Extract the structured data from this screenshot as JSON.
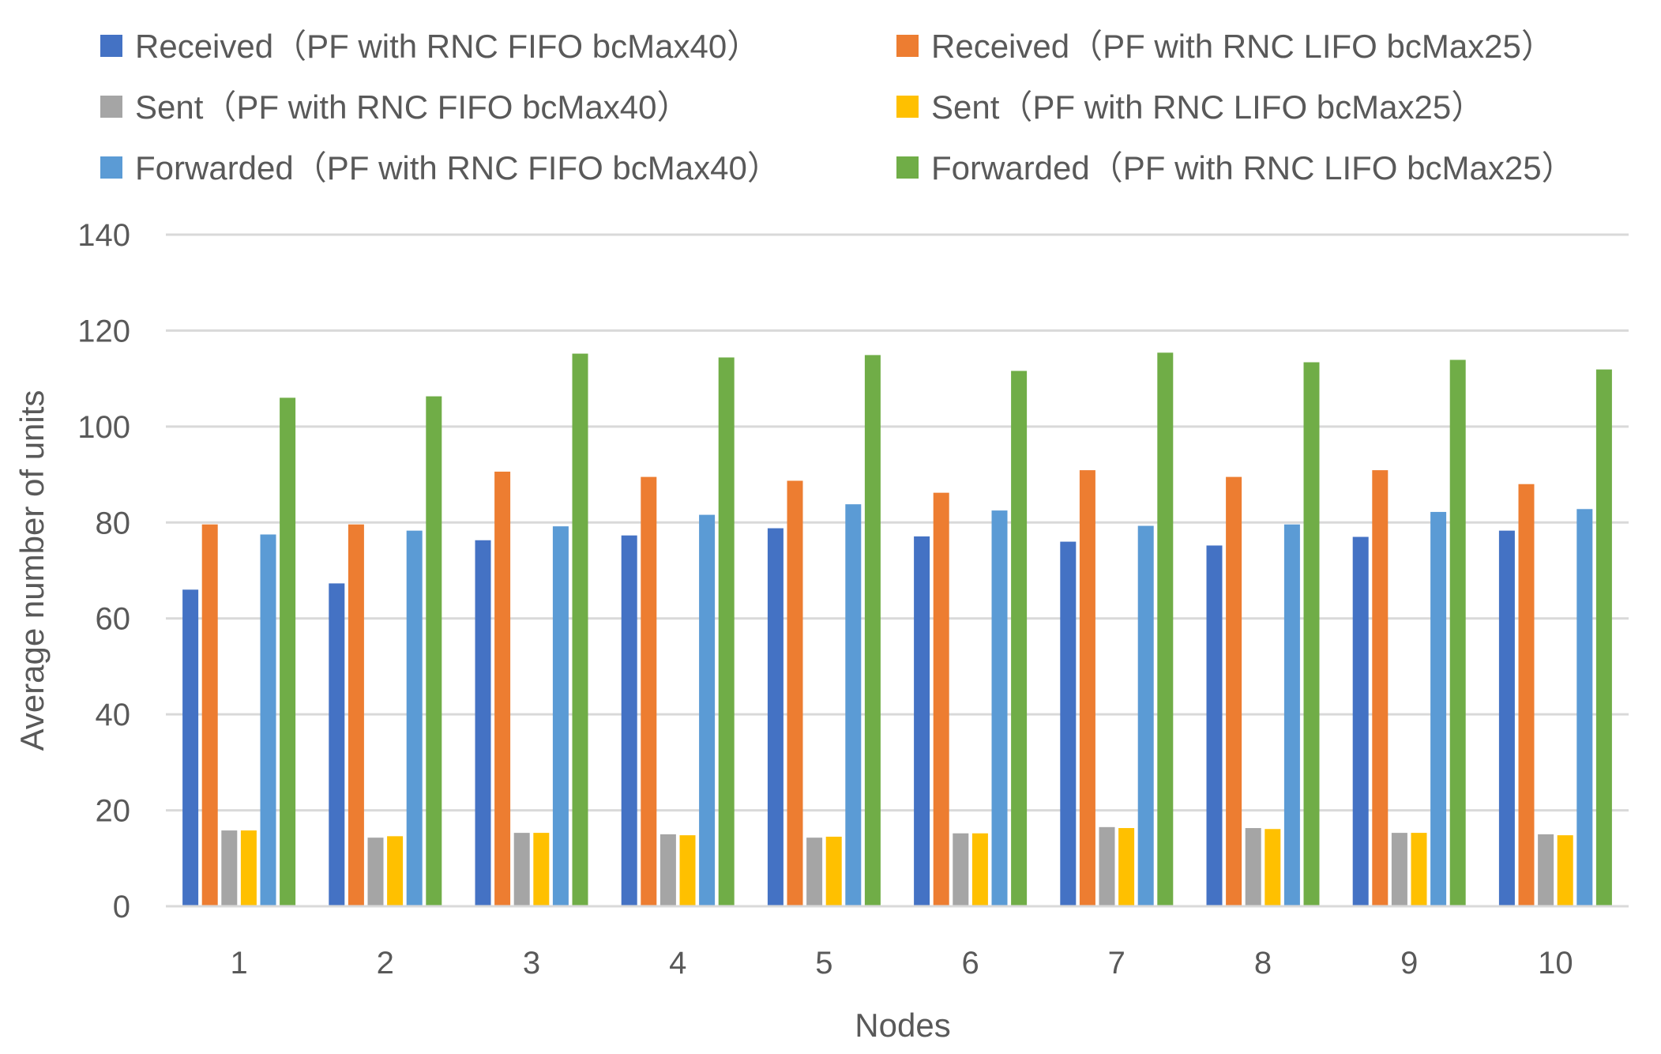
{
  "chart_data": {
    "type": "bar",
    "title": "",
    "xlabel": "Nodes",
    "ylabel": "Average number of units",
    "ylim": [
      0,
      140
    ],
    "yticks": [
      0,
      20,
      40,
      60,
      80,
      100,
      120,
      140
    ],
    "grid": true,
    "legend_position": "top",
    "categories": [
      "1",
      "2",
      "3",
      "4",
      "5",
      "6",
      "7",
      "8",
      "9",
      "10"
    ],
    "series": [
      {
        "name": "Received（PF with RNC FIFO bcMax40）",
        "color": "#4472C4",
        "values": [
          66,
          67.3,
          76.3,
          77.3,
          78.8,
          77.1,
          76,
          75.2,
          77,
          78.3
        ]
      },
      {
        "name": "Received（PF with RNC LIFO bcMax25）",
        "color": "#ED7D31",
        "values": [
          79.6,
          79.6,
          90.6,
          89.5,
          88.7,
          86.2,
          90.9,
          89.5,
          90.9,
          88
        ]
      },
      {
        "name": "Sent（PF with RNC FIFO bcMax40）",
        "color": "#A5A5A5",
        "values": [
          15.8,
          14.3,
          15.3,
          15,
          14.3,
          15.2,
          16.5,
          16.3,
          15.3,
          15
        ]
      },
      {
        "name": "Sent（PF with RNC LIFO bcMax25）",
        "color": "#FFC000",
        "values": [
          15.8,
          14.6,
          15.3,
          14.8,
          14.5,
          15.2,
          16.3,
          16.1,
          15.3,
          14.8
        ]
      },
      {
        "name": "Forwarded（PF with RNC FIFO bcMax40）",
        "color": "#5B9BD5",
        "values": [
          77.5,
          78.3,
          79.2,
          81.6,
          83.8,
          82.5,
          79.3,
          79.6,
          82.2,
          82.8
        ]
      },
      {
        "name": "Forwarded（PF with RNC LIFO bcMax25）",
        "color": "#70AD47",
        "values": [
          106,
          106.3,
          115.2,
          114.4,
          114.9,
          111.6,
          115.4,
          113.4,
          113.9,
          111.9
        ]
      }
    ]
  }
}
